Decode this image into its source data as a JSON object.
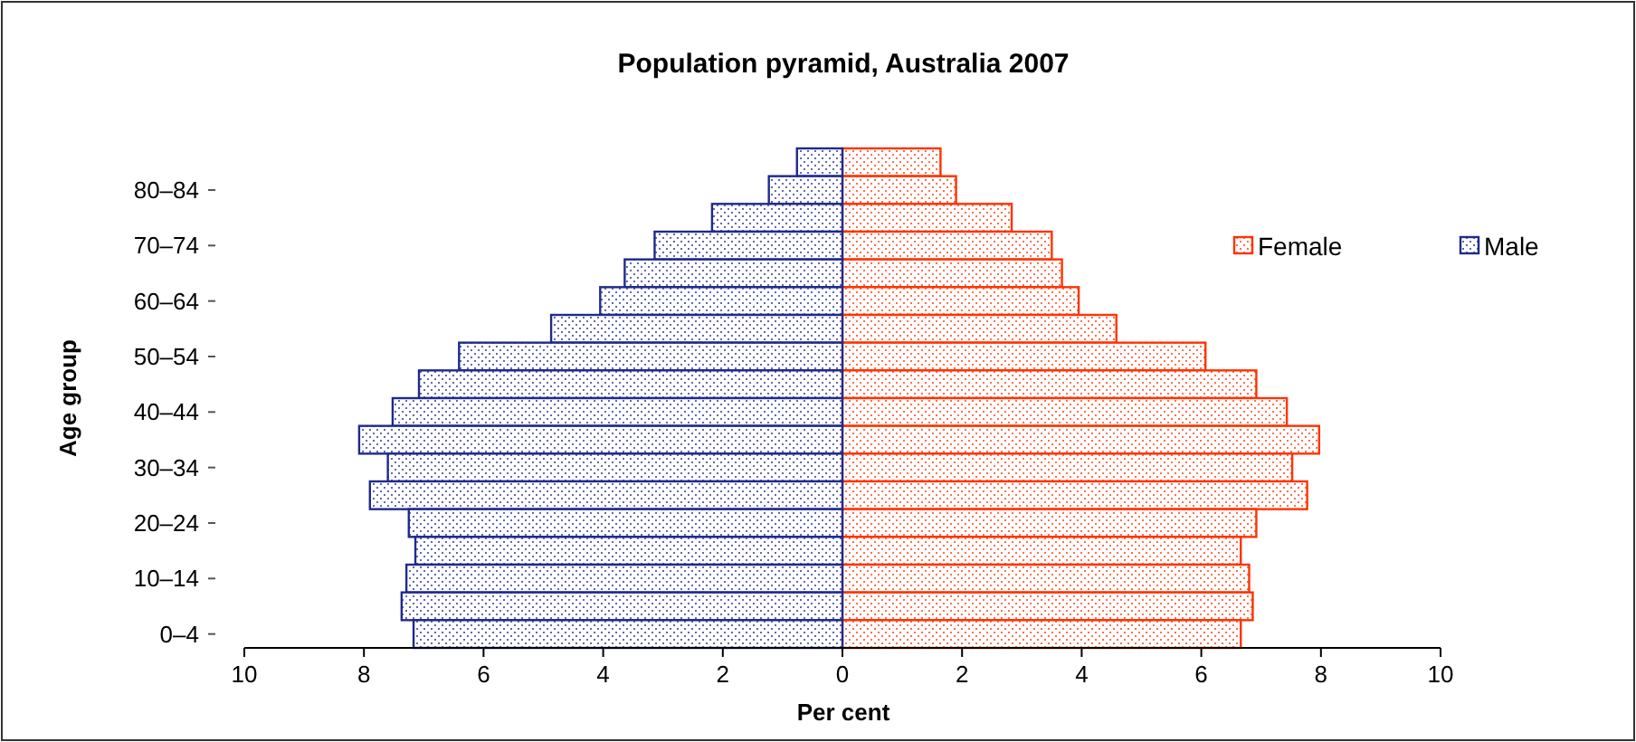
{
  "chart_data": {
    "type": "bar",
    "orientation": "horizontal",
    "stacked": true,
    "title": "Population pyramid, Australia 2007",
    "xlabel": "Per cent",
    "ylabel": "Age group",
    "categories": [
      null,
      "80–84",
      null,
      "70–74",
      null,
      "60–64",
      null,
      "50–54",
      null,
      "40–44",
      null,
      "30–34",
      null,
      "20–24",
      null,
      "10–14",
      null,
      "0–4"
    ],
    "series": [
      {
        "name": "Female",
        "color": "#ff3300",
        "values": [
          1.64,
          1.9,
          2.83,
          3.5,
          3.67,
          3.95,
          4.58,
          6.07,
          6.92,
          7.43,
          7.97,
          7.52,
          7.77,
          6.92,
          6.66,
          6.8,
          6.86,
          6.66
        ]
      },
      {
        "name": "Male",
        "color": "#1f2a8c",
        "values": [
          -0.76,
          -1.23,
          -2.18,
          -3.14,
          -3.64,
          -4.05,
          -4.87,
          -6.41,
          -7.08,
          -7.52,
          -8.08,
          -7.6,
          -7.9,
          -7.25,
          -7.14,
          -7.29,
          -7.37,
          -7.17
        ]
      }
    ],
    "xlim": [
      -10,
      10
    ],
    "xticks": [
      {
        "value": -10,
        "label": "10"
      },
      {
        "value": -8,
        "label": "8"
      },
      {
        "value": -6,
        "label": "6"
      },
      {
        "value": -4,
        "label": "4"
      },
      {
        "value": -2,
        "label": "2"
      },
      0,
      2,
      4,
      6,
      8,
      10
    ],
    "grid": false,
    "legend": "top right"
  }
}
